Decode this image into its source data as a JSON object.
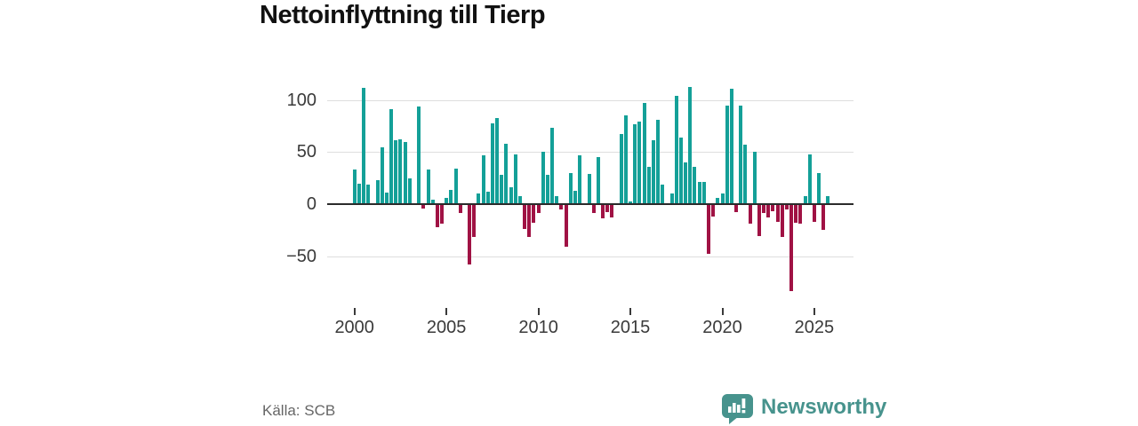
{
  "title": "Nettoinflyttning till Tierp",
  "source": "Källa: SCB",
  "brand": {
    "name": "Newsworthy"
  },
  "colors": {
    "positive": "#14a098",
    "negative": "#a01244",
    "axis": "#2b2b2b",
    "grid": "#dedede",
    "logo_teal": "#47938d",
    "title_text": "#111111",
    "tick_text": "#3a3a3a",
    "source_text": "#666666"
  },
  "chart_data": {
    "type": "bar",
    "title": "Nettoinflyttning till Tierp",
    "xlabel": "",
    "ylabel": "",
    "x_unit": "quarter",
    "start_year": 2000,
    "end_year": 2025,
    "x_tick_labels": [
      "2000",
      "2005",
      "2010",
      "2015",
      "2020",
      "2025"
    ],
    "y_ticks": [
      100,
      50,
      0,
      -50
    ],
    "y_tick_labels": [
      "100",
      "50",
      "0",
      "−50"
    ],
    "ylim": [
      -90,
      120
    ],
    "grid": true,
    "values": [
      33,
      20,
      112,
      19,
      0,
      23,
      55,
      11,
      91,
      61,
      62,
      60,
      25,
      0,
      94,
      -3,
      33,
      4,
      -21,
      -18,
      6,
      14,
      34,
      -8,
      0,
      -57,
      -31,
      10,
      47,
      12,
      78,
      83,
      28,
      58,
      16,
      48,
      8,
      -23,
      -31,
      -17,
      -8,
      50,
      28,
      73,
      8,
      -4,
      -40,
      30,
      13,
      47,
      0,
      29,
      -8,
      45,
      -13,
      -7,
      -12,
      0,
      67,
      85,
      3,
      77,
      79,
      97,
      36,
      61,
      81,
      19,
      0,
      10,
      104,
      64,
      40,
      113,
      36,
      21,
      21,
      -47,
      -11,
      6,
      10,
      95,
      111,
      -7,
      95,
      57,
      -18,
      50,
      -30,
      -8,
      -12,
      -6,
      -16,
      -31,
      -4,
      -83,
      -17,
      -18,
      8,
      48,
      -16,
      30,
      -24,
      8
    ]
  }
}
